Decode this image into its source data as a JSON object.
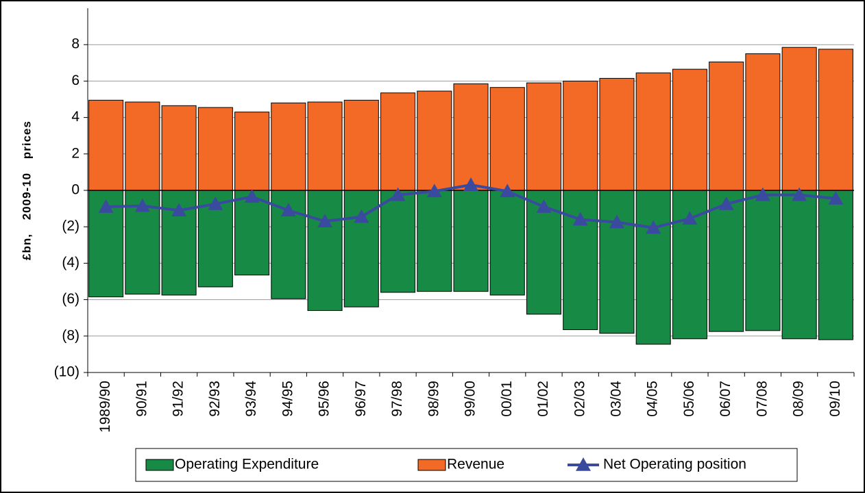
{
  "chart_data": {
    "type": "bar",
    "ylabel": "£bn, 2009-10 prices",
    "categories": [
      "1989/90",
      "90/91",
      "91/92",
      "92/93",
      "93/94",
      "94/95",
      "95/96",
      "96/97",
      "97/98",
      "98/99",
      "99/00",
      "00/01",
      "01/02",
      "02/03",
      "03/04",
      "04/05",
      "05/06",
      "06/07",
      "07/08",
      "08/09",
      "09/10"
    ],
    "series": [
      {
        "name": "Operating Expenditure",
        "type": "bar",
        "color": "#178a45",
        "values": [
          -5.85,
          -5.7,
          -5.75,
          -5.3,
          -4.65,
          -5.95,
          -6.6,
          -6.4,
          -5.6,
          -5.55,
          -5.55,
          -5.75,
          -6.8,
          -7.65,
          -7.85,
          -8.45,
          -8.15,
          -7.75,
          -7.7,
          -8.15,
          -8.2
        ]
      },
      {
        "name": "Revenue",
        "type": "bar",
        "color": "#f26a25",
        "values": [
          4.95,
          4.85,
          4.65,
          4.55,
          4.3,
          4.8,
          4.85,
          4.95,
          5.35,
          5.45,
          5.85,
          5.65,
          5.9,
          6.0,
          6.15,
          6.45,
          6.65,
          7.05,
          7.5,
          7.85,
          7.75
        ]
      },
      {
        "name": "Net Operating position",
        "type": "line",
        "color": "#3a4a9f",
        "values": [
          -0.9,
          -0.85,
          -1.1,
          -0.75,
          -0.35,
          -1.1,
          -1.7,
          -1.45,
          -0.25,
          -0.05,
          0.3,
          -0.05,
          -0.9,
          -1.6,
          -1.75,
          -2.05,
          -1.55,
          -0.75,
          -0.25,
          -0.25,
          -0.45
        ]
      }
    ],
    "ylim": [
      -10,
      10
    ],
    "yticks": [
      {
        "value": -10,
        "label": "(10)"
      },
      {
        "value": -8,
        "label": "(8)"
      },
      {
        "value": -6,
        "label": "(6)"
      },
      {
        "value": -4,
        "label": "(4)"
      },
      {
        "value": -2,
        "label": "(2)"
      },
      0,
      2,
      4,
      6,
      8
    ],
    "grid": true,
    "legend": "bottom"
  }
}
